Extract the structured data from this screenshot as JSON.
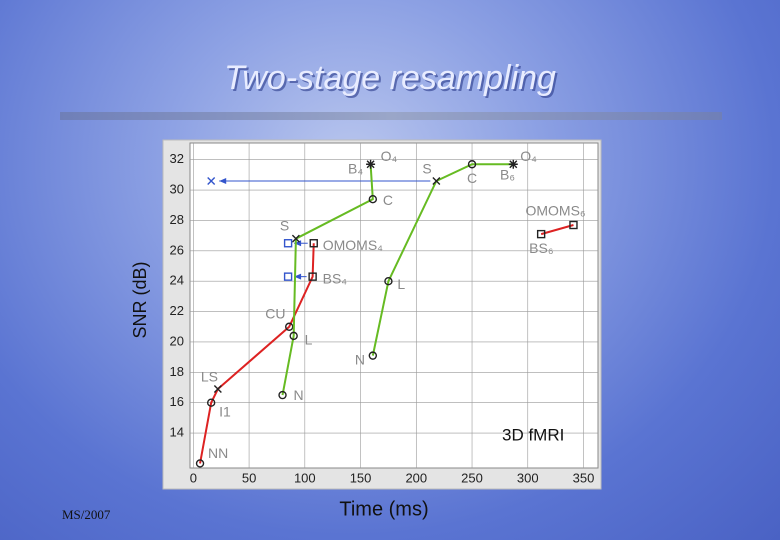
{
  "footer": "MS/2007",
  "chart_data": {
    "type": "line",
    "title": "Two-stage resampling",
    "xlabel": "Time (ms)",
    "ylabel": "SNR (dB)",
    "xlim": [
      -3,
      363
    ],
    "ylim": [
      11.7,
      33.1
    ],
    "xticks": [
      0,
      50,
      100,
      150,
      200,
      250,
      300,
      350
    ],
    "yticks": [
      14,
      16,
      18,
      20,
      22,
      24,
      26,
      28,
      30,
      32
    ],
    "grid": true,
    "series": [
      {
        "color": "#dd2222",
        "line": true,
        "x": [
          6,
          16,
          22,
          86,
          107,
          108
        ],
        "y": [
          12,
          16,
          16.9,
          21,
          24.3,
          26.5
        ],
        "markers": [
          "circle",
          "circle",
          "x",
          "circle",
          "square",
          "square"
        ],
        "labels": [
          "NN",
          "I1",
          "LS",
          "CU",
          "BS₄",
          "OMOMS₄"
        ]
      },
      {
        "color": "#66bb22",
        "line": true,
        "x": [
          80,
          90,
          92,
          161,
          159
        ],
        "y": [
          16.5,
          20.4,
          26.8,
          29.4,
          31.7
        ],
        "markers": [
          "circle",
          "circle",
          "x",
          "circle",
          "star"
        ],
        "labels": [
          "N",
          "L",
          "S",
          "C",
          "O₄"
        ]
      },
      {
        "color": "#66bb22",
        "line": true,
        "x": [
          161,
          175,
          218,
          250,
          287
        ],
        "y": [
          19.1,
          24,
          30.6,
          31.7,
          31.7
        ],
        "markers": [
          "circle",
          "circle",
          "x",
          "circle",
          "star"
        ],
        "labels": [
          "N",
          "L",
          "S",
          "C",
          "O₄"
        ]
      },
      {
        "color": "#dd2222",
        "line": true,
        "x": [
          312,
          341
        ],
        "y": [
          27.1,
          27.7
        ],
        "markers": [
          "square",
          "square"
        ],
        "labels": [
          "BS₆",
          "OMOMS₆"
        ]
      },
      {
        "color": "#3355cc",
        "line": false,
        "x": [
          85,
          85,
          16
        ],
        "y": [
          26.5,
          24.3,
          30.6
        ],
        "markers": [
          "square",
          "square",
          "x"
        ]
      }
    ],
    "annotations": [
      "B₄",
      "B₆",
      "3D fMRI"
    ]
  }
}
